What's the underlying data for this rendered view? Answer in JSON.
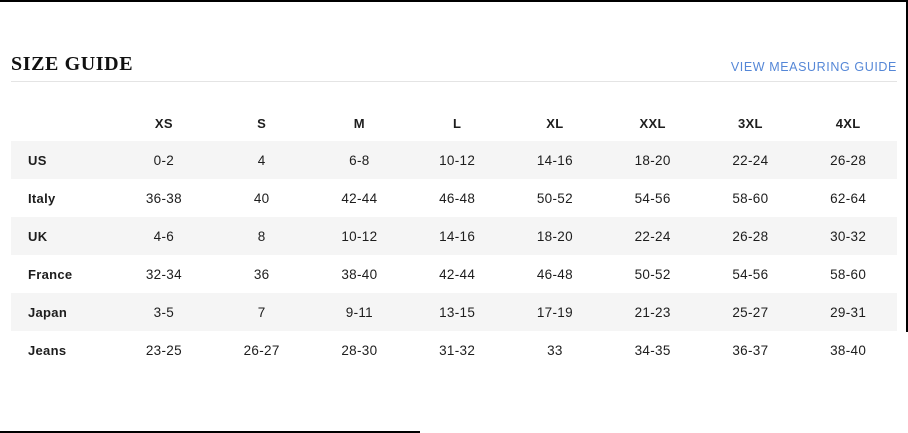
{
  "header": {
    "title": "SIZE GUIDE",
    "link_label": "VIEW MEASURING GUIDE"
  },
  "colors": {
    "link_blue": "#5587d7",
    "alt_row_bg": "#f5f5f5",
    "text": "#1d1d1d",
    "divider": "#e4e4e4"
  },
  "table": {
    "size_headers": [
      "XS",
      "S",
      "M",
      "L",
      "XL",
      "XXL",
      "3XL",
      "4XL"
    ],
    "rows": [
      {
        "label": "US",
        "values": [
          "0-2",
          "4",
          "6-8",
          "10-12",
          "14-16",
          "18-20",
          "22-24",
          "26-28"
        ]
      },
      {
        "label": "Italy",
        "values": [
          "36-38",
          "40",
          "42-44",
          "46-48",
          "50-52",
          "54-56",
          "58-60",
          "62-64"
        ]
      },
      {
        "label": "UK",
        "values": [
          "4-6",
          "8",
          "10-12",
          "14-16",
          "18-20",
          "22-24",
          "26-28",
          "30-32"
        ]
      },
      {
        "label": "France",
        "values": [
          "32-34",
          "36",
          "38-40",
          "42-44",
          "46-48",
          "50-52",
          "54-56",
          "58-60"
        ]
      },
      {
        "label": "Japan",
        "values": [
          "3-5",
          "7",
          "9-11",
          "13-15",
          "17-19",
          "21-23",
          "25-27",
          "29-31"
        ]
      },
      {
        "label": "Jeans",
        "values": [
          "23-25",
          "26-27",
          "28-30",
          "31-32",
          "33",
          "34-35",
          "36-37",
          "38-40"
        ]
      }
    ]
  }
}
